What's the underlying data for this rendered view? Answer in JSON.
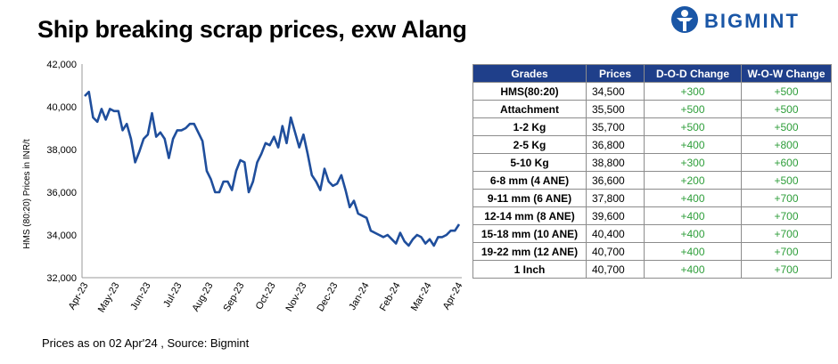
{
  "title": "Ship breaking scrap prices, exw Alang",
  "logo": {
    "text": "BIGMINT",
    "icon": "bigmint-person-icon",
    "color": "#1a56a6"
  },
  "footer": "Prices as on 02 Apr'24 , Source: Bigmint",
  "table": {
    "headers": [
      "Grades",
      "Prices",
      "D-O-D Change",
      "W-O-W Change"
    ],
    "rows": [
      {
        "grade": "HMS(80:20)",
        "price": "34,500",
        "dod": "+300",
        "wow": "+500"
      },
      {
        "grade": "Attachment",
        "price": "35,500",
        "dod": "+500",
        "wow": "+500"
      },
      {
        "grade": "1-2 Kg",
        "price": "35,700",
        "dod": "+500",
        "wow": "+500"
      },
      {
        "grade": "2-5 Kg",
        "price": "36,800",
        "dod": "+400",
        "wow": "+800"
      },
      {
        "grade": "5-10 Kg",
        "price": "38,800",
        "dod": "+300",
        "wow": "+600"
      },
      {
        "grade": "6-8 mm (4 ANE)",
        "price": "36,600",
        "dod": "+200",
        "wow": "+500"
      },
      {
        "grade": "9-11 mm (6 ANE)",
        "price": "37,800",
        "dod": "+400",
        "wow": "+700"
      },
      {
        "grade": "12-14 mm (8 ANE)",
        "price": "39,600",
        "dod": "+400",
        "wow": "+700"
      },
      {
        "grade": "15-18 mm (10 ANE)",
        "price": "40,400",
        "dod": "+400",
        "wow": "+700"
      },
      {
        "grade": "19-22 mm (12 ANE)",
        "price": "40,700",
        "dod": "+400",
        "wow": "+700"
      },
      {
        "grade": "1 Inch",
        "price": "40,700",
        "dod": "+400",
        "wow": "+700"
      }
    ],
    "header_color": "#1f3f8a",
    "change_color": "#2e9e3a"
  },
  "chart_data": {
    "type": "line",
    "title": "",
    "ylabel": "HMS (80:20) Prices in INR/t",
    "xlabel": "",
    "ylim": [
      32000,
      42000
    ],
    "yticks": [
      "32,000",
      "34,000",
      "36,000",
      "38,000",
      "40,000",
      "42,000"
    ],
    "ytick_values": [
      32000,
      34000,
      36000,
      38000,
      40000,
      42000
    ],
    "xticks": [
      "Apr-23",
      "May-23",
      "Jun-23",
      "Jul-23",
      "Aug-23",
      "Sep-23",
      "Oct-23",
      "Nov-23",
      "Dec-23",
      "Jan-24",
      "Feb-24",
      "Mar-24",
      "Apr-24"
    ],
    "line_color": "#1f4e9c",
    "grid": false,
    "series": [
      {
        "values": [
          40500,
          40700,
          39500,
          39300,
          39900,
          39400,
          39900,
          39800,
          39800,
          38900,
          39200,
          38500,
          37400,
          37900,
          38500,
          38700,
          39700,
          38600,
          38800,
          38500,
          37600,
          38500,
          38900,
          38900,
          39000,
          39200,
          39200,
          38800,
          38400,
          37000,
          36600,
          36000,
          36000,
          36500,
          36500,
          36100,
          37000,
          37500,
          37400,
          36000,
          36500,
          37400,
          37800,
          38300,
          38200,
          38600,
          38100,
          39100,
          38300,
          39500,
          38800,
          38100,
          38700,
          37800,
          36800,
          36500,
          36100,
          37100,
          36500,
          36300,
          36400,
          36800,
          36100,
          35300,
          35600,
          35000,
          34900,
          34800,
          34200,
          34100,
          34000,
          33900,
          34000,
          33800,
          33600,
          34100,
          33700,
          33500,
          33800,
          34000,
          33900,
          33600,
          33800,
          33500,
          33900,
          33900,
          34000,
          34200,
          34200,
          34500
        ]
      }
    ]
  }
}
